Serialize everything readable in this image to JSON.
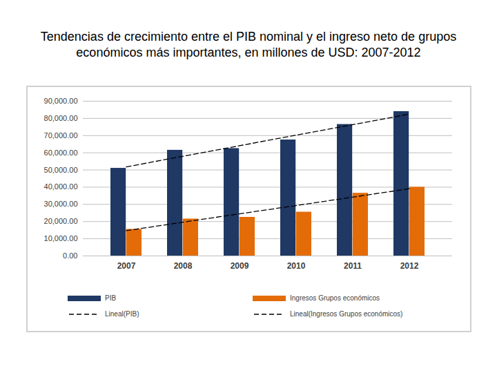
{
  "chart_data": {
    "type": "bar",
    "title": "Tendencias de crecimiento entre el PIB nominal y el ingreso neto de grupos económicos más importantes, en millones de USD: 2007-2012",
    "categories": [
      "2007",
      "2008",
      "2009",
      "2010",
      "2011",
      "2012"
    ],
    "series": [
      {
        "name": "PIB",
        "color": "#1f3864",
        "values": [
          51000,
          61500,
          62500,
          67500,
          76500,
          84000
        ]
      },
      {
        "name": "Ingresos Grupos económicos",
        "color": "#e36c09",
        "values": [
          15500,
          21500,
          22500,
          25500,
          36500,
          40000
        ]
      },
      {
        "name": "Lineal(PIB)",
        "type": "line",
        "line_style": "dashed",
        "color": "#000000",
        "values": [
          51800,
          57950,
          64100,
          70250,
          76350,
          82500
        ]
      },
      {
        "name": "Lineal(Ingresos Grupos económicos)",
        "type": "line",
        "line_style": "dashed",
        "color": "#000000",
        "values": [
          14700,
          19600,
          24500,
          29300,
          34200,
          39100
        ]
      }
    ],
    "ylim": [
      0,
      90000
    ],
    "yticks": [
      {
        "value": 0,
        "label": "0.00"
      },
      {
        "value": 10000,
        "label": "10,000.00"
      },
      {
        "value": 20000,
        "label": "20,000.00"
      },
      {
        "value": 30000,
        "label": "30,000.00"
      },
      {
        "value": 40000,
        "label": "40,000.00"
      },
      {
        "value": 50000,
        "label": "50,000.00"
      },
      {
        "value": 60000,
        "label": "60,000.00"
      },
      {
        "value": 70000,
        "label": "70,000.00"
      },
      {
        "value": 80000,
        "label": "80,000.00"
      },
      {
        "value": 90000,
        "label": "90,000.00"
      }
    ],
    "grid": true,
    "legend": "bottom"
  }
}
